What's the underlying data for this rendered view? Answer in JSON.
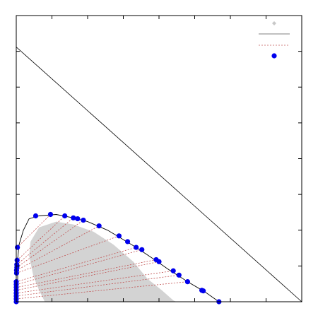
{
  "chart_data": {
    "type": "scatter",
    "title": "",
    "xlabel": "",
    "ylabel": "",
    "xlim": [
      0,
      1
    ],
    "ylim": [
      0,
      1
    ],
    "x_ticks": [
      0.125,
      0.25,
      0.375,
      0.5,
      0.625,
      0.75,
      0.875
    ],
    "y_ticks": [
      0.125,
      0.25,
      0.375,
      0.5,
      0.625,
      0.75,
      0.875
    ],
    "legend": {
      "placement": "top-right",
      "entries": [
        {
          "marker": "diamond",
          "color": "#c8c8c8"
        },
        {
          "marker": "solid-line",
          "color": "#808080"
        },
        {
          "marker": "dotted-line",
          "color": "#d08080"
        },
        {
          "marker": "circle",
          "color": "#0000ee"
        }
      ]
    },
    "diagonal_line": {
      "color": "#000000",
      "points": [
        [
          0,
          0.89
        ],
        [
          1,
          0
        ]
      ]
    },
    "shaded_region": {
      "color": "#d3d3d3",
      "points": [
        [
          0.1,
          0.0
        ],
        [
          0.08,
          0.04
        ],
        [
          0.06,
          0.09
        ],
        [
          0.045,
          0.16
        ],
        [
          0.05,
          0.21
        ],
        [
          0.08,
          0.26
        ],
        [
          0.14,
          0.28
        ],
        [
          0.2,
          0.27
        ],
        [
          0.27,
          0.245
        ],
        [
          0.34,
          0.2
        ],
        [
          0.41,
          0.14
        ],
        [
          0.46,
          0.08
        ],
        [
          0.51,
          0.04
        ],
        [
          0.55,
          0.005
        ],
        [
          0.56,
          0.0
        ]
      ]
    },
    "binodal_curve": {
      "color": "#000000",
      "points": [
        [
          0.0,
          0.0
        ],
        [
          0.005,
          0.05
        ],
        [
          0.005,
          0.15
        ],
        [
          0.01,
          0.2
        ],
        [
          0.025,
          0.25
        ],
        [
          0.045,
          0.29
        ],
        [
          0.08,
          0.3
        ],
        [
          0.14,
          0.305
        ],
        [
          0.2,
          0.293
        ],
        [
          0.25,
          0.28
        ],
        [
          0.32,
          0.25
        ],
        [
          0.37,
          0.22
        ],
        [
          0.42,
          0.19
        ],
        [
          0.48,
          0.15
        ],
        [
          0.53,
          0.115
        ],
        [
          0.6,
          0.07
        ],
        [
          0.66,
          0.035
        ],
        [
          0.71,
          0.0
        ]
      ]
    },
    "data_points": {
      "color": "#0000ee",
      "points": [
        [
          0.0,
          0.0
        ],
        [
          0.0,
          0.01
        ],
        [
          0.0,
          0.02
        ],
        [
          0.0,
          0.03
        ],
        [
          0.0,
          0.04
        ],
        [
          0.0,
          0.05
        ],
        [
          0.0,
          0.06
        ],
        [
          0.0,
          0.07
        ],
        [
          0.001,
          0.1
        ],
        [
          0.001,
          0.11
        ],
        [
          0.002,
          0.12
        ],
        [
          0.002,
          0.13
        ],
        [
          0.003,
          0.145
        ],
        [
          0.004,
          0.19
        ],
        [
          0.068,
          0.3
        ],
        [
          0.12,
          0.305
        ],
        [
          0.17,
          0.3
        ],
        [
          0.2,
          0.293
        ],
        [
          0.215,
          0.29
        ],
        [
          0.235,
          0.285
        ],
        [
          0.29,
          0.265
        ],
        [
          0.36,
          0.23
        ],
        [
          0.39,
          0.21
        ],
        [
          0.42,
          0.19
        ],
        [
          0.44,
          0.182
        ],
        [
          0.49,
          0.147
        ],
        [
          0.5,
          0.14
        ],
        [
          0.55,
          0.108
        ],
        [
          0.57,
          0.093
        ],
        [
          0.6,
          0.07
        ],
        [
          0.65,
          0.04
        ],
        [
          0.655,
          0.038
        ],
        [
          0.71,
          0.0
        ]
      ]
    },
    "tie_lines": {
      "color": "#c05050",
      "pairs": [
        [
          [
            0.0,
            0.01
          ],
          [
            0.6,
            0.07
          ]
        ],
        [
          [
            0.0,
            0.02
          ],
          [
            0.57,
            0.093
          ]
        ],
        [
          [
            0.0,
            0.03
          ],
          [
            0.55,
            0.108
          ]
        ],
        [
          [
            0.0,
            0.04
          ],
          [
            0.5,
            0.14
          ]
        ],
        [
          [
            0.0,
            0.05
          ],
          [
            0.49,
            0.147
          ]
        ],
        [
          [
            0.0,
            0.06
          ],
          [
            0.44,
            0.182
          ]
        ],
        [
          [
            0.0,
            0.07
          ],
          [
            0.42,
            0.19
          ]
        ],
        [
          [
            0.001,
            0.1
          ],
          [
            0.36,
            0.23
          ]
        ],
        [
          [
            0.001,
            0.11
          ],
          [
            0.29,
            0.265
          ]
        ],
        [
          [
            0.002,
            0.12
          ],
          [
            0.235,
            0.285
          ]
        ],
        [
          [
            0.002,
            0.13
          ],
          [
            0.2,
            0.293
          ]
        ],
        [
          [
            0.003,
            0.145
          ],
          [
            0.17,
            0.3
          ]
        ],
        [
          [
            0.004,
            0.19
          ],
          [
            0.12,
            0.305
          ]
        ],
        [
          [
            0.0,
            0.0
          ],
          [
            0.71,
            0.0
          ]
        ]
      ]
    }
  }
}
